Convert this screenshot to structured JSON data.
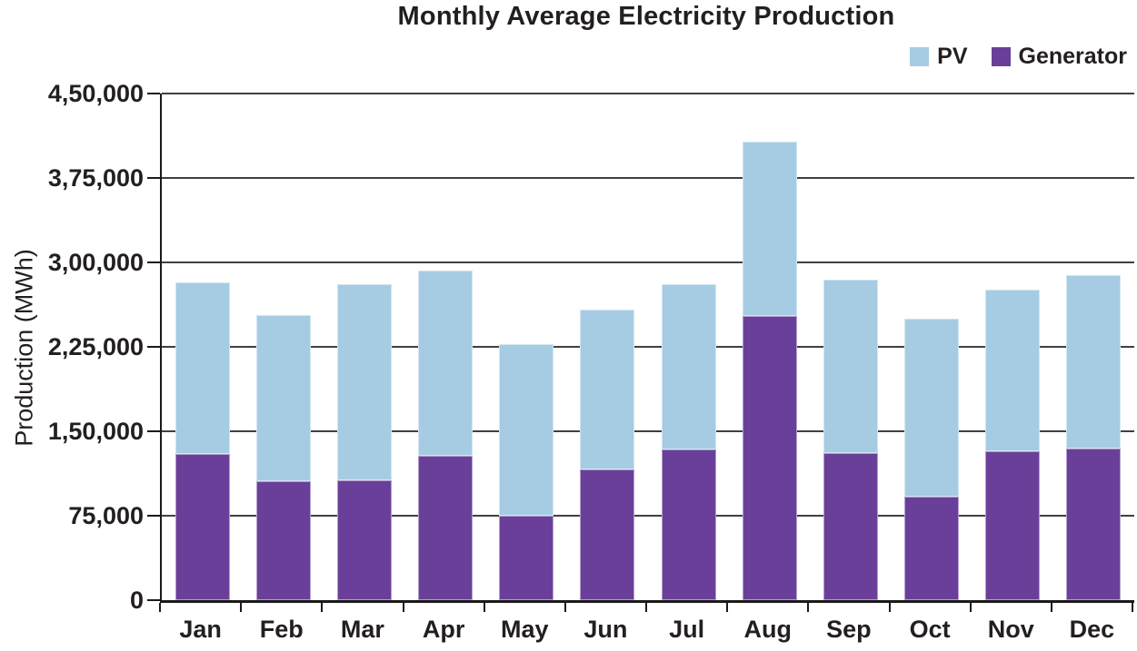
{
  "chart_data": {
    "type": "bar",
    "stacked": true,
    "title": "Monthly Average Electricity Production",
    "xlabel": "",
    "ylabel": "Production (MWh)",
    "ylim": [
      0,
      450000
    ],
    "grid": true,
    "legend_position": "top-right",
    "categories": [
      "Jan",
      "Feb",
      "Mar",
      "Apr",
      "May",
      "Jun",
      "Jul",
      "Aug",
      "Sep",
      "Oct",
      "Nov",
      "Dec"
    ],
    "series": [
      {
        "name": "Generator",
        "color": "#6a3f99",
        "values": [
          130000,
          106000,
          106500,
          128000,
          75000,
          116000,
          134000,
          252500,
          130500,
          92000,
          132000,
          135000
        ]
      },
      {
        "name": "PV",
        "color": "#a5cce2",
        "values": [
          152000,
          147000,
          174500,
          164500,
          152500,
          142000,
          147000,
          155000,
          154500,
          158000,
          144000,
          154000
        ]
      }
    ],
    "totals": [
      282000,
      253000,
      281000,
      292500,
      227500,
      258000,
      281000,
      407500,
      285000,
      250000,
      276000,
      289000
    ],
    "y_ticks": [
      {
        "value": 0,
        "label": "0"
      },
      {
        "value": 75000,
        "label": "75,000"
      },
      {
        "value": 150000,
        "label": "1,50,000"
      },
      {
        "value": 225000,
        "label": "2,25,000"
      },
      {
        "value": 300000,
        "label": "3,00,000"
      },
      {
        "value": 375000,
        "label": "3,75,000"
      },
      {
        "value": 450000,
        "label": "4,50,000"
      }
    ]
  },
  "legend": [
    {
      "label": "PV",
      "color": "#a5cce2"
    },
    {
      "label": "Generator",
      "color": "#6a3f99"
    }
  ],
  "colors": {
    "pv": "#a5cce2",
    "generator": "#6a3f99",
    "text": "#231f20",
    "gridline": "#404040",
    "axis": "#1a1a1a",
    "background": "#ffffff"
  }
}
